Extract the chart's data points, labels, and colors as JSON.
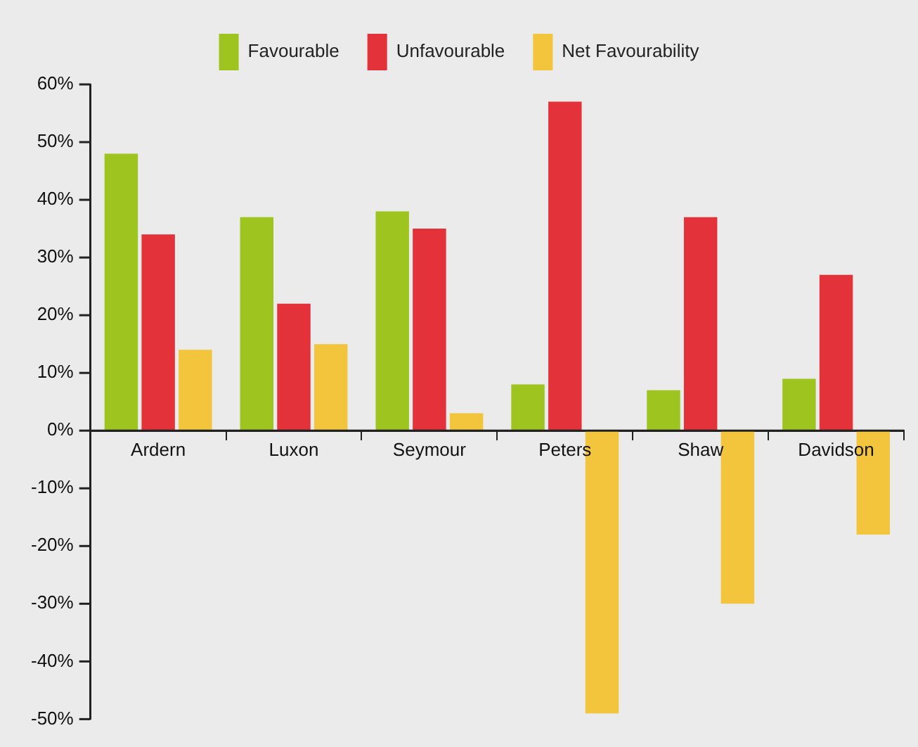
{
  "chart_data": {
    "type": "bar",
    "categories": [
      "Ardern",
      "Luxon",
      "Seymour",
      "Peters",
      "Shaw",
      "Davidson"
    ],
    "series": [
      {
        "name": "Favourable",
        "color": "#9dc41f",
        "values": [
          48,
          37,
          38,
          8,
          7,
          9
        ]
      },
      {
        "name": "Unfavourable",
        "color": "#e3323a",
        "values": [
          34,
          22,
          35,
          57,
          37,
          27
        ]
      },
      {
        "name": "Net Favourability",
        "color": "#f2c53d",
        "values": [
          14,
          15,
          3,
          -49,
          -30,
          -18
        ]
      }
    ],
    "ylim": [
      -50,
      60
    ],
    "yticks": [
      {
        "value": -50,
        "label": "-50%"
      },
      {
        "value": -40,
        "label": "-40%"
      },
      {
        "value": -30,
        "label": "-30%"
      },
      {
        "value": -20,
        "label": "-20%"
      },
      {
        "value": -10,
        "label": "-10%"
      },
      {
        "value": 0,
        "label": "0%"
      },
      {
        "value": 10,
        "label": "10%"
      },
      {
        "value": 20,
        "label": "20%"
      },
      {
        "value": 30,
        "label": "30%"
      },
      {
        "value": 40,
        "label": "40%"
      },
      {
        "value": 50,
        "label": "50%"
      },
      {
        "value": 60,
        "label": "60%"
      }
    ],
    "legend": "top",
    "grid": false
  }
}
